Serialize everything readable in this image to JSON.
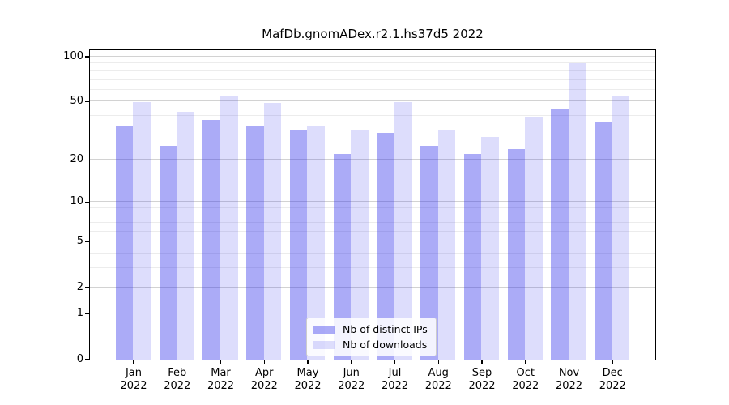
{
  "page": {
    "background": "#ffffff"
  },
  "chart_data": {
    "type": "bar",
    "title": "MafDb.gnomADex.r2.1.hs37d5 2022",
    "categories": [
      "Jan",
      "Feb",
      "Mar",
      "Apr",
      "May",
      "Jun",
      "Jul",
      "Aug",
      "Sep",
      "Oct",
      "Nov",
      "Dec"
    ],
    "year_label": "2022",
    "series": [
      {
        "name": "Nb of distinct IPs",
        "color_hex": "#a6a6f5",
        "color_rgba": "rgba(45,45,235,0.40)",
        "values": [
          34,
          25,
          38,
          34,
          32,
          22,
          31,
          25,
          22,
          24,
          45,
          37
        ]
      },
      {
        "name": "Nb of downloads",
        "color_hex": "#dcdcf8",
        "color_rgba": "rgba(45,45,235,0.16)",
        "values": [
          50,
          43,
          55,
          49,
          34,
          32,
          50,
          32,
          29,
          40,
          91,
          55
        ]
      }
    ],
    "xlabel": "",
    "ylabel": "",
    "y_scale": "log1p",
    "ylim": [
      0,
      112
    ],
    "y_ticks": [
      0,
      1,
      2,
      5,
      10,
      20,
      50,
      100
    ],
    "y_minor_ticks": [
      3,
      4,
      6,
      7,
      8,
      9,
      30,
      40,
      60,
      70,
      80,
      90
    ],
    "grid": "on",
    "legend_position": "lower-center",
    "frame_color": "#000000",
    "major_grid_color": "#d2d2d2",
    "minor_grid_color": "#ececec"
  }
}
